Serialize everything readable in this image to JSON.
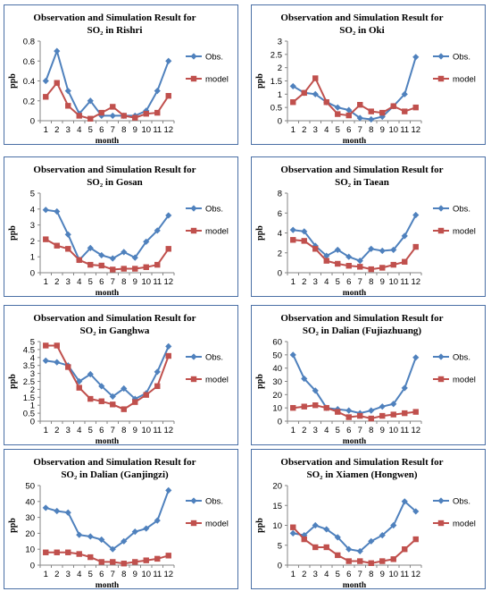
{
  "legend_labels": {
    "obs": "Obs.",
    "model": "model"
  },
  "colors": {
    "obs": "#4f81bd",
    "model": "#c0504d",
    "axis": "#868686",
    "border": "#4a6fa5"
  },
  "chart_data": [
    {
      "type": "line",
      "title_line1": "Observation and Simulation Result for",
      "title_line2": "SO₂ in Rishri",
      "xlabel": "month",
      "ylabel": "ppb",
      "ylim": [
        0,
        0.8
      ],
      "yticks": [
        "0",
        "0.2",
        "0.4",
        "0.6",
        "0.8"
      ],
      "categories": [
        "1",
        "2",
        "3",
        "4",
        "5",
        "6",
        "7",
        "8",
        "9",
        "10",
        "11",
        "12"
      ],
      "legend": "right",
      "series": [
        {
          "name": "Obs.",
          "values": [
            0.4,
            0.7,
            0.3,
            0.07,
            0.2,
            0.05,
            0.05,
            0.05,
            0.05,
            0.1,
            0.3,
            0.6
          ]
        },
        {
          "name": "model",
          "values": [
            0.24,
            0.38,
            0.15,
            0.05,
            0.02,
            0.08,
            0.14,
            0.05,
            0.03,
            0.07,
            0.08,
            0.25
          ]
        }
      ]
    },
    {
      "type": "line",
      "title_line1": "Observation and Simulation Result for",
      "title_line2": "SO₂ in Oki",
      "xlabel": "month",
      "ylabel": "ppb",
      "ylim": [
        0,
        3
      ],
      "yticks": [
        "0",
        "0.5",
        "1",
        "1.5",
        "2",
        "2.5",
        "3"
      ],
      "categories": [
        "1",
        "2",
        "3",
        "4",
        "5",
        "6",
        "7",
        "8",
        "9",
        "10",
        "11",
        "12"
      ],
      "legend": "right",
      "series": [
        {
          "name": "Obs.",
          "values": [
            1.3,
            1.05,
            1.0,
            0.7,
            0.5,
            0.4,
            0.1,
            0.05,
            0.15,
            0.55,
            1.0,
            2.4
          ]
        },
        {
          "name": "model",
          "values": [
            0.7,
            1.05,
            1.6,
            0.7,
            0.25,
            0.2,
            0.6,
            0.35,
            0.3,
            0.55,
            0.35,
            0.5
          ]
        }
      ]
    },
    {
      "type": "line",
      "title_line1": "Observation and Simulation Result for",
      "title_line2": "SO₂ in Gosan",
      "xlabel": "month",
      "ylabel": "ppb",
      "ylim": [
        0,
        5
      ],
      "yticks": [
        "0",
        "1",
        "2",
        "3",
        "4",
        "5"
      ],
      "categories": [
        "1",
        "2",
        "3",
        "4",
        "5",
        "6",
        "7",
        "8",
        "9",
        "10",
        "11",
        "12"
      ],
      "legend": "right",
      "series": [
        {
          "name": "Obs.",
          "values": [
            3.95,
            3.85,
            2.4,
            0.8,
            1.55,
            1.1,
            0.9,
            1.3,
            0.95,
            1.95,
            2.65,
            3.6
          ]
        },
        {
          "name": "model",
          "values": [
            2.1,
            1.7,
            1.5,
            0.8,
            0.5,
            0.45,
            0.2,
            0.25,
            0.25,
            0.35,
            0.5,
            1.5
          ]
        }
      ]
    },
    {
      "type": "line",
      "title_line1": "Observation and Simulation Result for",
      "title_line2": "SO₂ in Taean",
      "xlabel": "month",
      "ylabel": "ppb",
      "ylim": [
        0,
        8
      ],
      "yticks": [
        "0",
        "2",
        "4",
        "6",
        "8"
      ],
      "categories": [
        "1",
        "2",
        "3",
        "4",
        "5",
        "6",
        "7",
        "8",
        "9",
        "10",
        "11",
        "12"
      ],
      "legend": "right",
      "series": [
        {
          "name": "Obs.",
          "values": [
            4.3,
            4.15,
            2.7,
            1.7,
            2.3,
            1.6,
            1.2,
            2.4,
            2.2,
            2.3,
            3.7,
            5.8
          ]
        },
        {
          "name": "model",
          "values": [
            3.3,
            3.2,
            2.4,
            1.2,
            0.9,
            0.7,
            0.6,
            0.35,
            0.5,
            0.8,
            1.1,
            2.6
          ]
        }
      ]
    },
    {
      "type": "line",
      "title_line1": "Observation and Simulation Result for",
      "title_line2": "SO₂ in Ganghwa",
      "xlabel": "month",
      "ylabel": "ppb",
      "ylim": [
        0,
        5
      ],
      "yticks": [
        "0",
        "0.5",
        "1",
        "1.5",
        "2",
        "2.5",
        "3",
        "3.5",
        "4",
        "4.5",
        "5"
      ],
      "categories": [
        "1",
        "2",
        "3",
        "4",
        "5",
        "6",
        "7",
        "8",
        "9",
        "10",
        "11",
        "12"
      ],
      "legend": "right",
      "series": [
        {
          "name": "Obs.",
          "values": [
            3.8,
            3.7,
            3.5,
            2.5,
            2.95,
            2.2,
            1.55,
            2.05,
            1.4,
            1.75,
            3.1,
            4.7
          ]
        },
        {
          "name": "model",
          "values": [
            4.75,
            4.75,
            3.4,
            2.1,
            1.4,
            1.25,
            1.05,
            0.75,
            1.2,
            1.65,
            2.2,
            4.1
          ]
        }
      ]
    },
    {
      "type": "line",
      "title_line1": "Observation and Simulation Result for",
      "title_line2": "SO₂ in Dalian  (Fujiazhuang)",
      "xlabel": "month",
      "ylabel": "ppb",
      "ylim": [
        0,
        60
      ],
      "yticks": [
        "0",
        "10",
        "20",
        "30",
        "40",
        "50",
        "60"
      ],
      "categories": [
        "1",
        "2",
        "3",
        "4",
        "5",
        "6",
        "7",
        "8",
        "9",
        "10",
        "11",
        "12"
      ],
      "legend": "right",
      "series": [
        {
          "name": "Obs.",
          "values": [
            50,
            32,
            23,
            10,
            9,
            8,
            6,
            8,
            11,
            13,
            25,
            48
          ]
        },
        {
          "name": "model",
          "values": [
            10,
            11,
            12,
            10,
            7,
            3,
            4,
            2,
            4,
            5,
            6,
            7
          ]
        }
      ]
    },
    {
      "type": "line",
      "title_line1": "Observation and Simulation Result for",
      "title_line2": "SO₂ in Dalian (Ganjingzi)",
      "xlabel": "month",
      "ylabel": "ppb",
      "ylim": [
        0,
        50
      ],
      "yticks": [
        "0",
        "10",
        "20",
        "30",
        "40",
        "50"
      ],
      "categories": [
        "1",
        "2",
        "3",
        "4",
        "5",
        "6",
        "7",
        "8",
        "9",
        "10",
        "11",
        "12"
      ],
      "legend": "right",
      "series": [
        {
          "name": "Obs.",
          "values": [
            36,
            34,
            33,
            19,
            18,
            16,
            10,
            15,
            21,
            23,
            28,
            47
          ]
        },
        {
          "name": "model",
          "values": [
            8,
            8,
            8,
            7,
            5,
            2,
            2,
            1,
            2,
            3,
            4,
            6
          ]
        }
      ]
    },
    {
      "type": "line",
      "title_line1": "Observation and Simulation Result for",
      "title_line2": "SO₂  in Xiamen (Hongwen)",
      "xlabel": "month",
      "ylabel": "ppb",
      "ylim": [
        0,
        20
      ],
      "yticks": [
        "0",
        "5",
        "10",
        "15",
        "20"
      ],
      "categories": [
        "1",
        "2",
        "3",
        "4",
        "5",
        "6",
        "7",
        "8",
        "9",
        "10",
        "11",
        "12"
      ],
      "legend": "right",
      "series": [
        {
          "name": "Obs.",
          "values": [
            8.0,
            7.5,
            10.0,
            9.0,
            7.0,
            4.0,
            3.5,
            6.0,
            7.5,
            10.0,
            16.0,
            13.5
          ]
        },
        {
          "name": "model",
          "values": [
            9.5,
            6.5,
            4.5,
            4.5,
            2.5,
            1.0,
            1.0,
            0.5,
            1.0,
            1.5,
            4.0,
            6.5
          ]
        }
      ]
    }
  ]
}
